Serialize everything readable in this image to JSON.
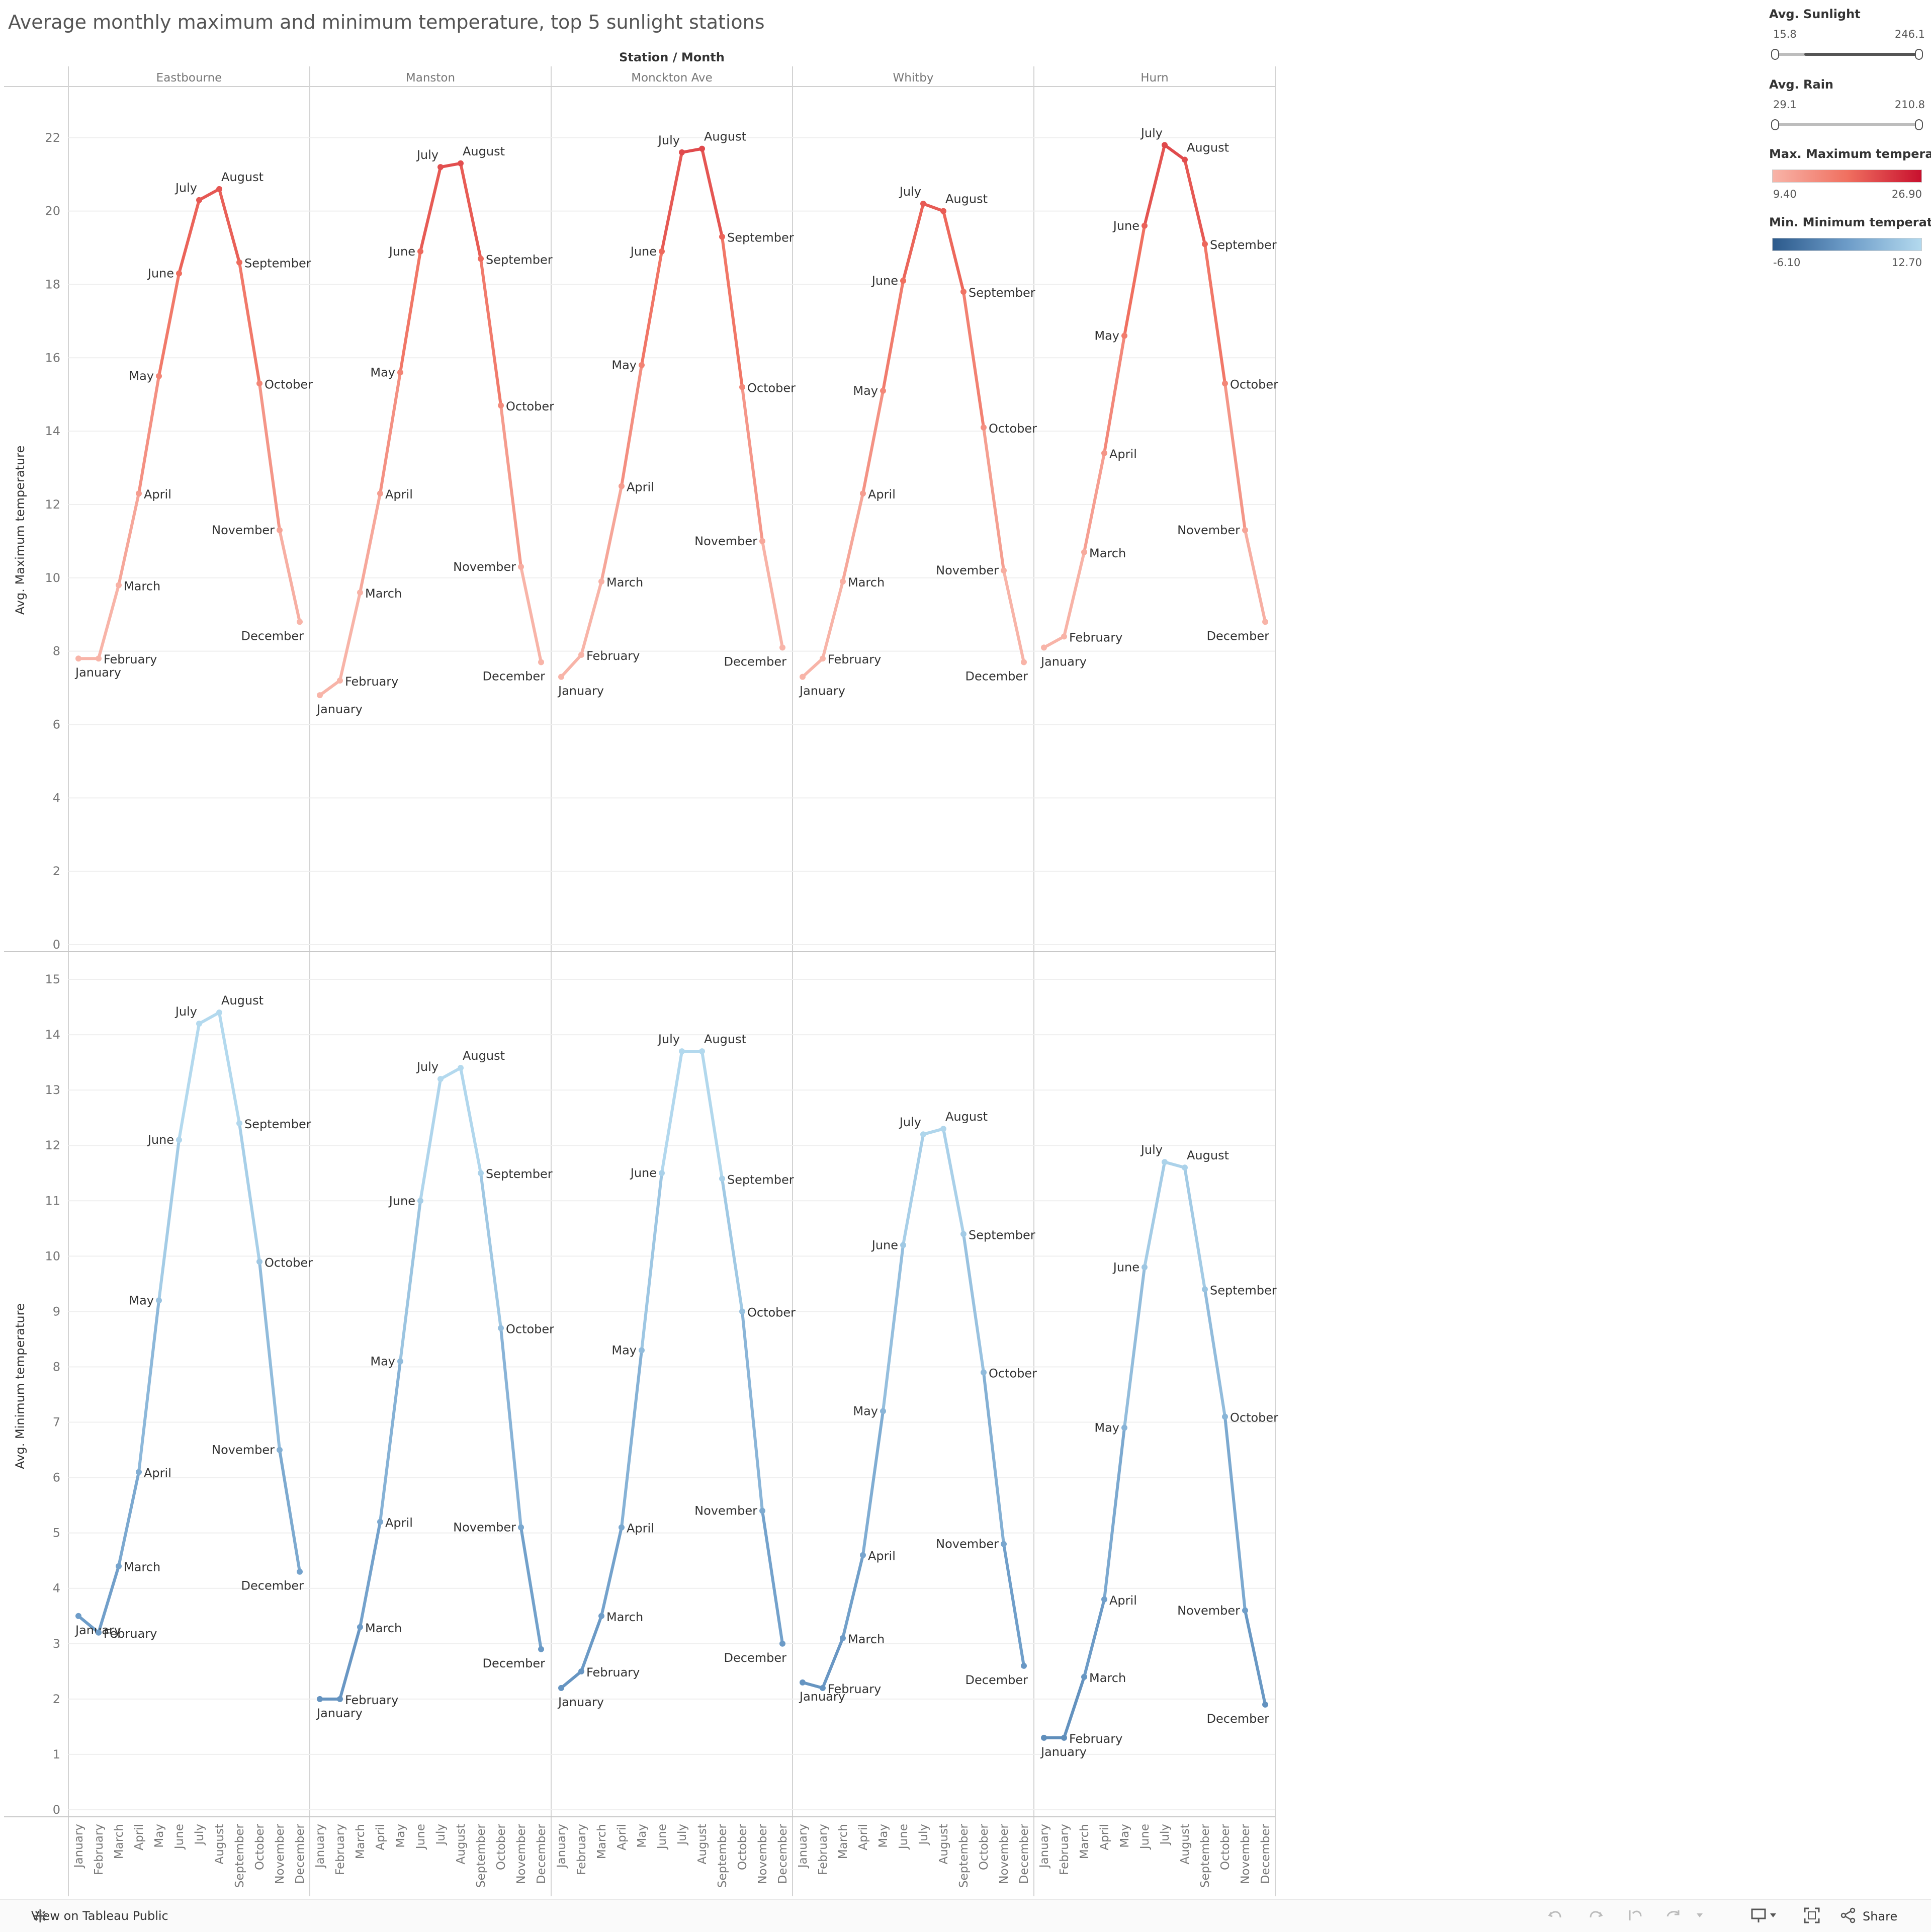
{
  "title": "Average monthly maximum and minimum temperature, top 5 sunlight stations",
  "legend": {
    "sunlight": {
      "title": "Avg. Sunlight",
      "min": "15.8",
      "max": "246.1"
    },
    "rain": {
      "title": "Avg. Rain",
      "min": "29.1",
      "max": "210.8"
    },
    "max_color": {
      "title": "Max. Maximum temperat...",
      "min": "9.40",
      "max": "26.90",
      "color_low": "#f8b4a8",
      "color_high": "#c8102e"
    },
    "min_color": {
      "title": "Min. Minimum temperature",
      "min": "-6.10",
      "max": "12.70",
      "color_low": "#2c5a8c",
      "color_high": "#b3d9ee"
    }
  },
  "footer": {
    "view_label": "View on Tableau Public",
    "share_label": "Share",
    "icons": [
      "tableau-logo-icon",
      "undo-icon",
      "redo-icon",
      "revert-icon",
      "refresh-icon",
      "pause-icon",
      "download-icon",
      "fullscreen-icon",
      "share-icon"
    ]
  },
  "chart_data": {
    "type": "line",
    "header": "Station / Month",
    "categories": [
      "January",
      "February",
      "March",
      "April",
      "May",
      "June",
      "July",
      "August",
      "September",
      "October",
      "November",
      "December"
    ],
    "stations": [
      "Eastbourne",
      "Manston",
      "Monckton Ave",
      "Whitby",
      "Hurn"
    ],
    "panels": [
      {
        "measure": "max",
        "ylabel": "Avg. Maximum temperature",
        "ylim": [
          0,
          22.6
        ],
        "yticks": [
          "0",
          "2",
          "4",
          "6",
          "8",
          "10",
          "12",
          "14",
          "16",
          "18",
          "20",
          "22"
        ],
        "series": [
          {
            "station": "Eastbourne",
            "values": [
              7.8,
              7.8,
              9.8,
              12.3,
              15.5,
              18.3,
              20.3,
              20.6,
              18.6,
              15.3,
              11.3,
              8.8
            ]
          },
          {
            "station": "Manston",
            "values": [
              6.8,
              7.2,
              9.6,
              12.3,
              15.6,
              18.9,
              21.2,
              21.3,
              18.7,
              14.7,
              10.3,
              7.7
            ]
          },
          {
            "station": "Monckton Ave",
            "values": [
              7.3,
              7.9,
              9.9,
              12.5,
              15.8,
              18.9,
              21.6,
              21.7,
              19.3,
              15.2,
              11.0,
              8.1
            ]
          },
          {
            "station": "Whitby",
            "values": [
              7.3,
              7.8,
              9.9,
              12.3,
              15.1,
              18.1,
              20.2,
              20.0,
              17.8,
              14.1,
              10.2,
              7.7
            ]
          },
          {
            "station": "Hurn",
            "values": [
              8.1,
              8.4,
              10.7,
              13.4,
              16.6,
              19.6,
              21.8,
              21.4,
              19.1,
              15.3,
              11.3,
              8.8
            ]
          }
        ]
      },
      {
        "measure": "min",
        "ylabel": "Avg. Minimum temperature",
        "ylim": [
          0,
          15.3
        ],
        "yticks": [
          "0",
          "1",
          "2",
          "3",
          "4",
          "5",
          "6",
          "7",
          "8",
          "9",
          "10",
          "11",
          "12",
          "13",
          "14",
          "15"
        ],
        "series": [
          {
            "station": "Eastbourne",
            "values": [
              3.5,
              3.2,
              4.4,
              6.1,
              9.2,
              12.1,
              14.2,
              14.4,
              12.4,
              9.9,
              6.5,
              4.3
            ]
          },
          {
            "station": "Manston",
            "values": [
              2.0,
              2.0,
              3.3,
              5.2,
              8.1,
              11.0,
              13.2,
              13.4,
              11.5,
              8.7,
              5.1,
              2.9
            ]
          },
          {
            "station": "Monckton Ave",
            "values": [
              2.2,
              2.5,
              3.5,
              5.1,
              8.3,
              11.5,
              13.7,
              13.7,
              11.4,
              9.0,
              5.4,
              3.0
            ]
          },
          {
            "station": "Whitby",
            "values": [
              2.3,
              2.2,
              3.1,
              4.6,
              7.2,
              10.2,
              12.2,
              12.3,
              10.4,
              7.9,
              4.8,
              2.6
            ]
          },
          {
            "station": "Hurn",
            "values": [
              1.3,
              1.3,
              2.4,
              3.8,
              6.9,
              9.8,
              11.7,
              11.6,
              9.4,
              7.1,
              3.6,
              1.9
            ]
          }
        ]
      }
    ]
  }
}
